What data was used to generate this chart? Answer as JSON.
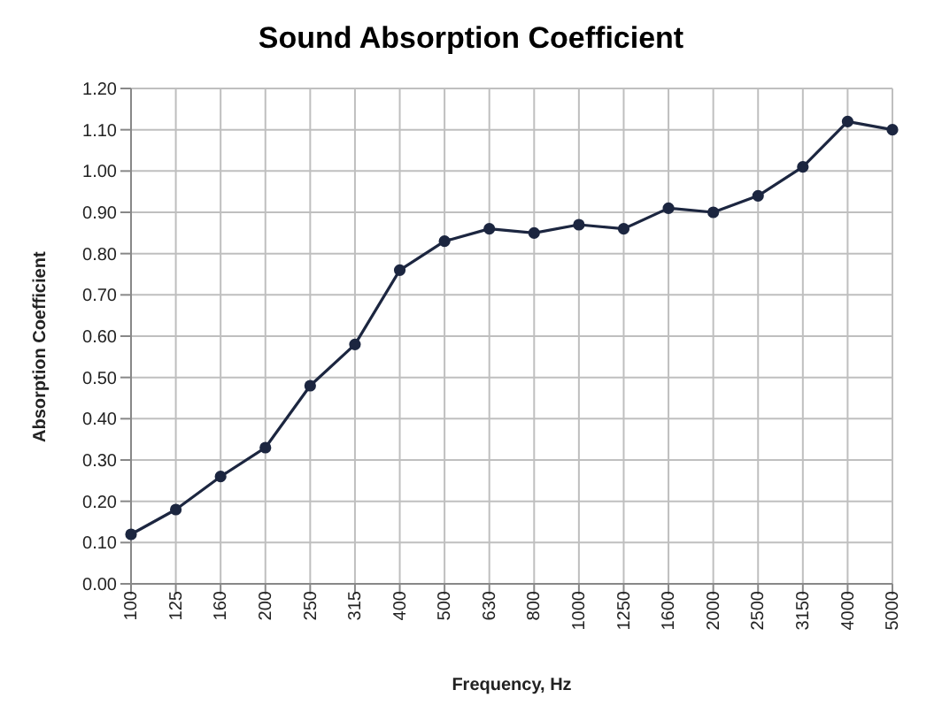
{
  "chart_data": {
    "type": "line",
    "title": "Sound Absorption Coefficient",
    "xlabel": "Frequency, Hz",
    "ylabel": "Absorption Coefficient",
    "categories": [
      "100",
      "125",
      "160",
      "200",
      "250",
      "315",
      "400",
      "500",
      "630",
      "800",
      "1000",
      "1250",
      "1600",
      "2000",
      "2500",
      "3150",
      "4000",
      "5000"
    ],
    "series": [
      {
        "color": "#1c2640",
        "values": [
          0.12,
          0.18,
          0.26,
          0.33,
          0.48,
          0.58,
          0.76,
          0.83,
          0.86,
          0.85,
          0.87,
          0.86,
          0.91,
          0.9,
          0.94,
          1.01,
          1.12,
          1.1
        ]
      }
    ],
    "ylim": [
      0,
      1.2
    ],
    "yticks": [
      {
        "value": 0,
        "label": "0.00"
      },
      {
        "value": 0.1,
        "label": "0.10"
      },
      {
        "value": 0.2,
        "label": "0.20"
      },
      {
        "value": 0.3,
        "label": "0.30"
      },
      {
        "value": 0.4,
        "label": "0.40"
      },
      {
        "value": 0.5,
        "label": "0.50"
      },
      {
        "value": 0.6,
        "label": "0.60"
      },
      {
        "value": 0.7,
        "label": "0.70"
      },
      {
        "value": 0.8,
        "label": "0.80"
      },
      {
        "value": 0.9,
        "label": "0.90"
      },
      {
        "value": 1.0,
        "label": "1.00"
      },
      {
        "value": 1.1,
        "label": "1.10"
      },
      {
        "value": 1.2,
        "label": "1.20"
      }
    ],
    "grid": true,
    "marker": "circle",
    "line_style": "solid",
    "legend": false
  }
}
